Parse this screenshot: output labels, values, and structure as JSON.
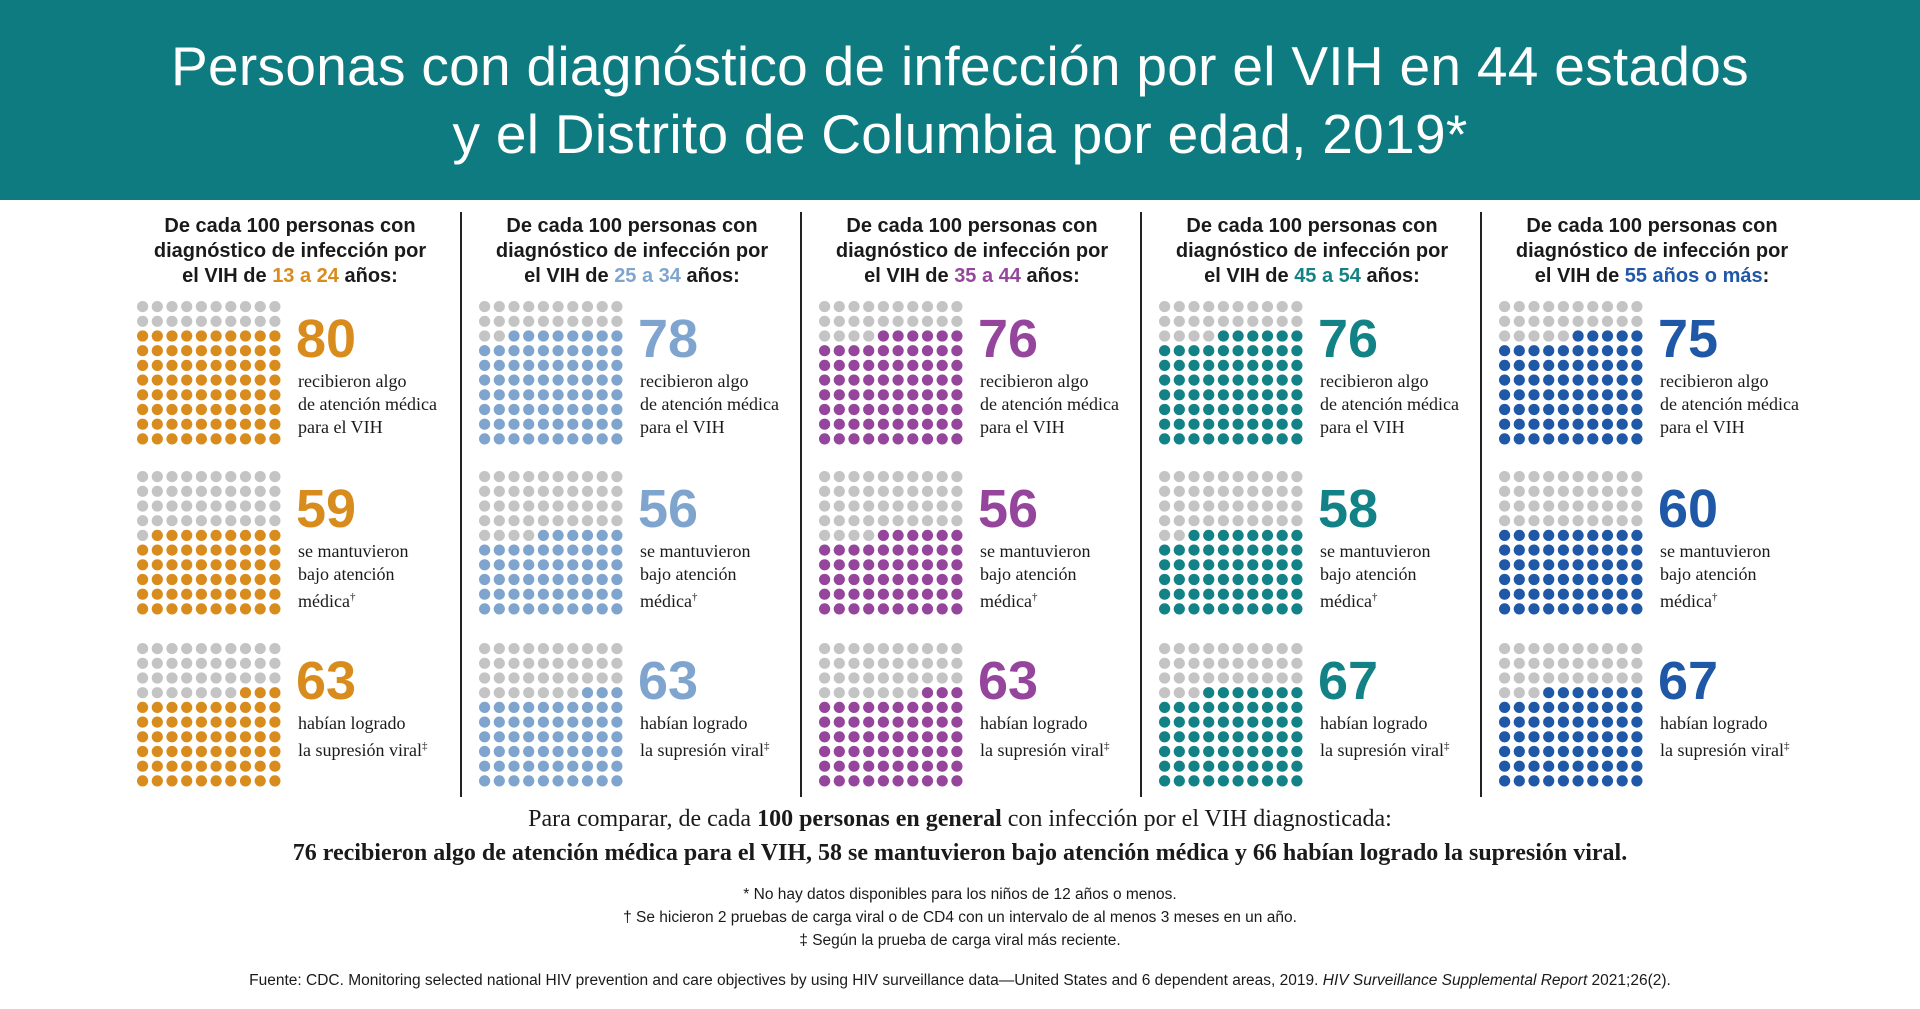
{
  "header": {
    "title_line1": "Personas con diagnóstico de infección por el VIH en 44 estados",
    "title_line2": "y el Distrito de Columbia por edad, 2019*"
  },
  "colors": {
    "header_bg": "#0e7b80",
    "dot_gray": "#c4c4c4",
    "age_13_24": "#d98c1e",
    "age_25_34": "#7fa5cf",
    "age_35_44": "#95459c",
    "age_45_54": "#138286",
    "age_55_plus": "#1f58a6"
  },
  "chart_data": {
    "type": "waffle",
    "grid": "10x10",
    "categories": [
      "13 a 24",
      "25 a 34",
      "35 a 44",
      "45 a 54",
      "55 años o más"
    ],
    "panel_head_prefix": "De cada 100 personas con diagnóstico de infección por el VIH de",
    "panel_head_suffix": "años:",
    "series": [
      {
        "name": "recibieron algo de atención médica para el VIH",
        "values": [
          80,
          78,
          76,
          76,
          75
        ]
      },
      {
        "name": "se mantuvieron bajo atención médica†",
        "values": [
          59,
          56,
          56,
          58,
          60
        ]
      },
      {
        "name": "habían logrado la supresión viral‡",
        "values": [
          63,
          63,
          63,
          67,
          67
        ]
      }
    ]
  },
  "panels": [
    {
      "label": "13 a 24",
      "suffix": " años:",
      "color": "#d98c1e",
      "values": [
        "80",
        "59",
        "63"
      ]
    },
    {
      "label": "25 a 34",
      "suffix": " años:",
      "color": "#7fa5cf",
      "values": [
        "78",
        "56",
        "63"
      ]
    },
    {
      "label": "35 a 44",
      "suffix": " años:",
      "color": "#95459c",
      "values": [
        "76",
        "56",
        "63"
      ]
    },
    {
      "label": "45 a 54",
      "suffix": " años:",
      "color": "#138286",
      "values": [
        "76",
        "58",
        "67"
      ]
    },
    {
      "label": "55 años o más",
      "suffix": ":",
      "color": "#1f58a6",
      "values": [
        "75",
        "60",
        "67"
      ]
    }
  ],
  "head": {
    "line1": "De cada 100 personas con",
    "line2": "diagnóstico de infección por",
    "line3_prefix": "el VIH de "
  },
  "metrics": [
    {
      "line1": "recibieron algo",
      "line2": "de atención médica",
      "line3": "para el VIH",
      "mark": ""
    },
    {
      "line1": "se mantuvieron",
      "line2": "bajo atención",
      "line3": "médica",
      "mark": "†"
    },
    {
      "line1": "habían logrado",
      "line2": "la supresión viral",
      "line3": "",
      "mark": "‡"
    }
  ],
  "compare": {
    "line1_a": "Para comparar, de cada ",
    "line1_b": "100 personas en general",
    "line1_c": " con infección por el VIH diagnosticada:",
    "line2": "76 recibieron algo de atención médica para el VIH, 58 se mantuvieron bajo atención médica y 66 habían logrado la supresión viral."
  },
  "footnotes": [
    "* No hay datos disponibles para los niños de 12 años o menos.",
    "† Se hicieron 2 pruebas de carga viral o de CD4 con un intervalo de al menos 3 meses en un año.",
    "‡ Según la prueba de carga viral más reciente."
  ],
  "source": {
    "text": "Fuente: CDC. Monitoring selected national HIV prevention and care objectives by using HIV surveillance data—United States and 6 dependent areas, 2019. ",
    "italic": "HIV Surveillance Supplemental Report",
    "tail": " 2021;26(2)."
  }
}
